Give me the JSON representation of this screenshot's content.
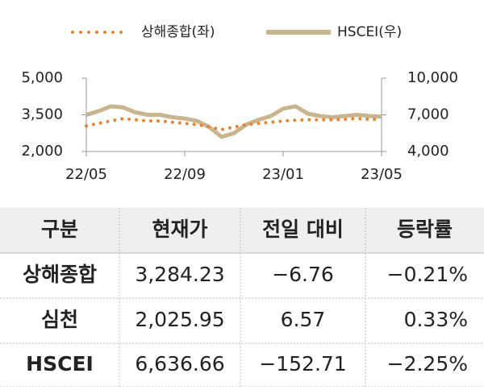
{
  "chart_data": {
    "type": "line",
    "categories": [
      "22/05",
      null,
      null,
      null,
      null,
      null,
      null,
      null,
      "22/09",
      null,
      null,
      null,
      null,
      null,
      null,
      null,
      "23/01",
      null,
      null,
      null,
      null,
      null,
      null,
      null,
      "23/05"
    ],
    "series": [
      {
        "name": "상해종합(좌)",
        "color": "#e8822f",
        "style": "dotted",
        "values": [
          3050,
          3150,
          3250,
          3350,
          3300,
          3250,
          3250,
          3200,
          3150,
          3100,
          3000,
          2900,
          3000,
          3100,
          3150,
          3200,
          3250,
          3280,
          3300,
          3300,
          3300,
          3320,
          3350,
          3320,
          3300
        ]
      },
      {
        "name": "HSCEI(우)",
        "color": "#c8b48e",
        "style": "solid",
        "axis": "y2",
        "values": [
          7000,
          7300,
          7700,
          7600,
          7200,
          7000,
          7000,
          6800,
          6700,
          6500,
          6000,
          5200,
          5500,
          6200,
          6600,
          6900,
          7500,
          7700,
          7100,
          6900,
          6800,
          6900,
          7000,
          6900,
          6850
        ]
      }
    ],
    "ylim": [
      2000,
      5000
    ],
    "yticks": [
      {
        "value": 2000,
        "label": "2,000"
      },
      {
        "value": 3500,
        "label": "3,500"
      },
      {
        "value": 5000,
        "label": "5,000"
      }
    ],
    "y2lim": [
      4000,
      10000
    ],
    "y2ticks": [
      {
        "value": 4000,
        "label": "4,000"
      },
      {
        "value": 7000,
        "label": "7,000"
      },
      {
        "value": 10000,
        "label": "10,000"
      }
    ],
    "grid": false,
    "legend": "top"
  },
  "table": {
    "header": [
      "구분",
      "현재가",
      "전일 대비",
      "등락률"
    ],
    "rows": [
      [
        "상해종합",
        "3,284.23",
        "−6.76",
        "−0.21%"
      ],
      [
        "심천",
        "2,025.95",
        "6.57",
        "0.33%"
      ],
      [
        "HSCEI",
        "6,636.66",
        "−152.71",
        "−2.25%"
      ]
    ]
  }
}
